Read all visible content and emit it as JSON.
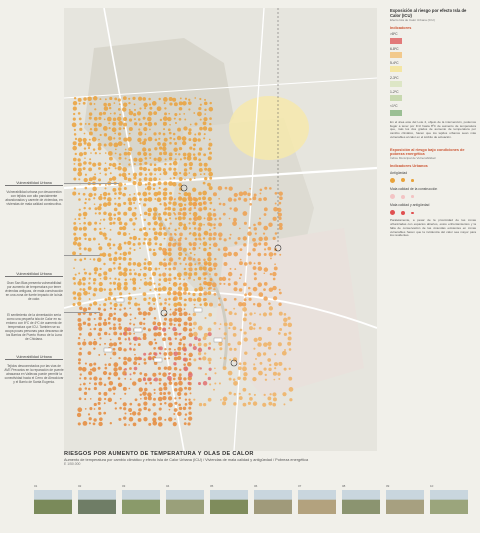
{
  "legend": {
    "title": "Exposición al riesgo por efecto Isla de Calor (ICU)",
    "indicators_head": "Indicadores",
    "indicators": [
      {
        "label": ">8ºC",
        "color": "#e27a7a"
      },
      {
        "label": "6-8ºC",
        "color": "#f2c98c"
      },
      {
        "label": "5-4ºC",
        "color": "#f4e6a4"
      },
      {
        "label": "2-3ºC",
        "color": "#dde6c6"
      },
      {
        "label": "1-2ºC",
        "color": "#c8d9b0"
      },
      {
        "label": "<1ºC",
        "color": "#9bbf94"
      }
    ],
    "section2_title": "Exposición al riesgo bajo condiciones de pobreza energética",
    "urban_head": "Indicadores Urbanos",
    "antiguedad": "Antigüedad",
    "mala_calidad": "Mala calidad de la construcción",
    "mala_antig": "Mala calidad y antigüedad"
  },
  "side_labels": {
    "v1": "Vulnerabilidad Urbana",
    "v2": "Vulnerabilidad Urbana",
    "v3": "Vulnerabilidad Urbana"
  },
  "title": {
    "main": "RIESGOS POR AUMENTO DE TEMPERATURA Y OLAS DE CALOR",
    "sub": "Aumento de temperatura por cambio climático y efecto Isla de Calor Urbana (ICU) / Viviendas de mala calidad y antigüedad / Pobreza energética",
    "scale": "E 1/50.000"
  },
  "photos": [
    "01",
    "02",
    "03",
    "04",
    "05",
    "06",
    "07",
    "08",
    "09",
    "10"
  ]
}
